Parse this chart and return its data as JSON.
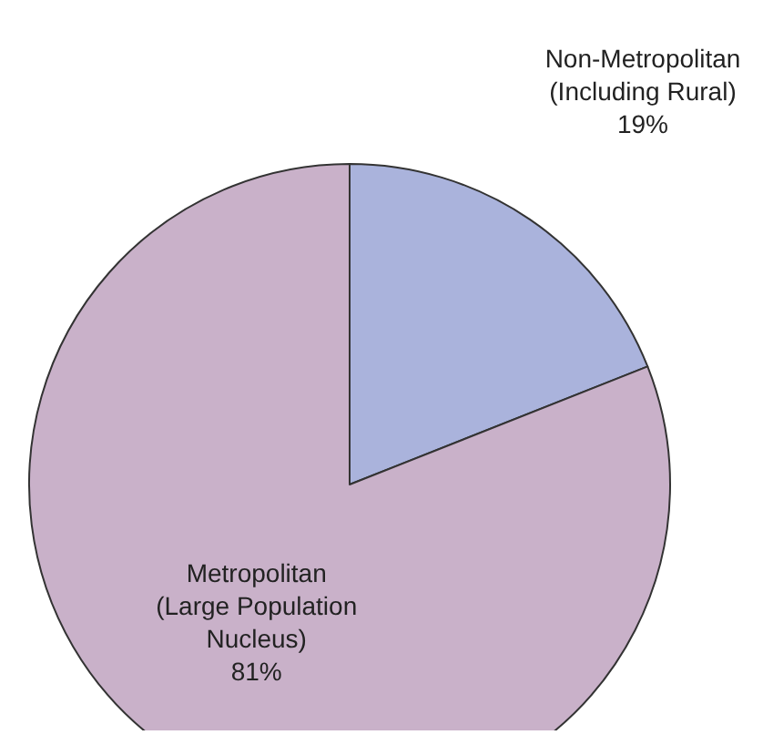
{
  "chart_data": {
    "type": "pie",
    "categories": [
      "Non-Metropolitan\n(Including Rural)",
      "Metropolitan\n(Large Population\nNucleus)"
    ],
    "values": [
      19,
      81
    ],
    "colors": [
      "#aab3dc",
      "#c9b1c9"
    ],
    "value_labels": [
      "19%",
      "81%"
    ],
    "legend": false
  }
}
